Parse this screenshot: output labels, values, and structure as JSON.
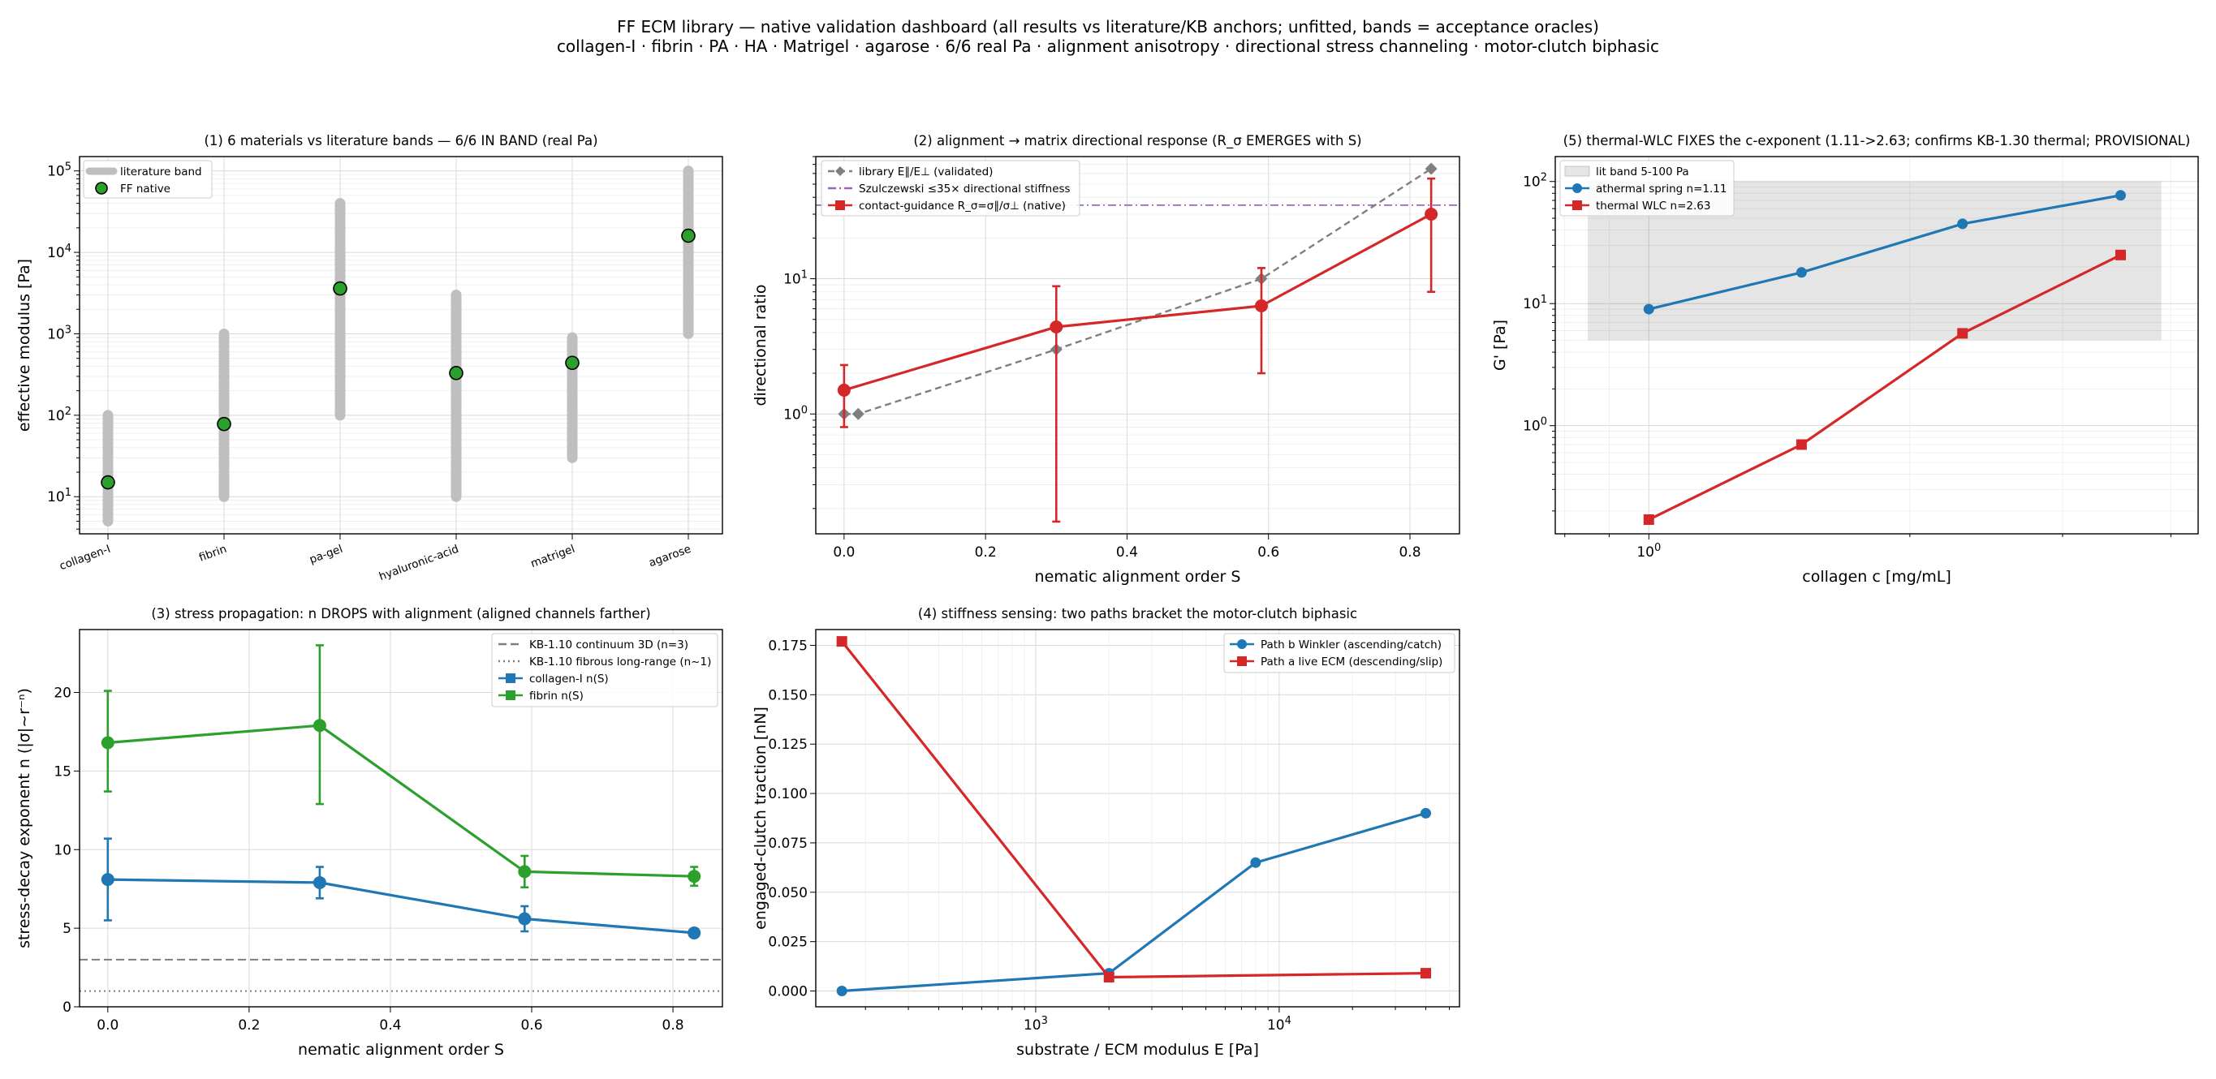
{
  "suptitle": {
    "line1": "FF ECM library — native validation dashboard (all results vs literature/KB anchors; unfitted, bands = acceptance oracles)",
    "line2": "collagen-I · fibrin · PA · HA · Matrigel · agarose  ·  6/6 real Pa · alignment anisotropy · directional stress channeling · motor-clutch biphasic"
  },
  "colors": {
    "band": "#bfbfbf",
    "green": "#2ca02c",
    "red": "#d62728",
    "blue": "#1f77b4",
    "gray": "#7f7f7f",
    "purple": "#9467bd"
  },
  "chart_data": [
    {
      "id": "p1",
      "type": "scatter",
      "title": "(1) 6 materials vs literature bands — 6/6 IN BAND (real Pa)",
      "xlabel": "",
      "ylabel": "effective modulus [Pa]",
      "yscale": "log",
      "ylim": [
        3.5,
        150000
      ],
      "categories": [
        "collagen-I",
        "fibrin",
        "pa-gel",
        "hyaluronic-acid",
        "matrigel",
        "agarose"
      ],
      "bands": [
        [
          5,
          100
        ],
        [
          10,
          1000
        ],
        [
          100,
          40000
        ],
        [
          10,
          3000
        ],
        [
          30,
          900
        ],
        [
          1000,
          100000
        ]
      ],
      "values": [
        15,
        78,
        3600,
        330,
        440,
        16000
      ],
      "legend": [
        "literature band",
        "FF native"
      ],
      "legend_position": "upper-left",
      "grid": true
    },
    {
      "id": "p2",
      "type": "line",
      "title": "(2) alignment → matrix directional response (R_σ EMERGES with S)",
      "xlabel": "nematic alignment order S",
      "ylabel": "directional ratio",
      "yscale": "log",
      "xlim": [
        -0.04,
        0.87
      ],
      "ylim": [
        0.13,
        80
      ],
      "legend_position": "upper-left",
      "grid": true,
      "hline": {
        "name": "Szulczewski ≤35× directional stiffness",
        "y": 35
      },
      "series": [
        {
          "name": "library E∥/E⊥ (validated)",
          "x": [
            0.0,
            0.02,
            0.3,
            0.59,
            0.83
          ],
          "y": [
            1.0,
            1.0,
            3.0,
            10.0,
            65.0
          ]
        },
        {
          "name": "contact-guidance R_σ=σ∥/σ⊥ (native)",
          "x": [
            0.0,
            0.3,
            0.59,
            0.83
          ],
          "y": [
            1.5,
            4.4,
            6.3,
            30.0
          ],
          "err_low": [
            0.8,
            0.16,
            2.0,
            8.0
          ],
          "err_high": [
            2.3,
            8.8,
            12.0,
            55.0
          ]
        }
      ]
    },
    {
      "id": "p5",
      "type": "line",
      "title": "(5) thermal-WLC FIXES the c-exponent (1.11->2.63; confirms KB-1.30 thermal; PROVISIONAL)",
      "xlabel": "collagen c [mg/mL]",
      "ylabel": "G' [Pa]",
      "xscale": "log",
      "yscale": "log",
      "xlim": [
        0.78,
        4.3
      ],
      "ylim": [
        0.13,
        160
      ],
      "legend_position": "upper-left",
      "grid": true,
      "band": {
        "name": "lit band 5-100 Pa",
        "y": [
          5,
          100
        ]
      },
      "series": [
        {
          "name": "athermal spring n=1.11",
          "x": [
            1.0,
            1.5,
            2.3,
            3.5
          ],
          "y": [
            9.0,
            18.0,
            45.0,
            77.0
          ]
        },
        {
          "name": "thermal WLC n=2.63",
          "x": [
            1.0,
            1.5,
            2.3,
            3.5
          ],
          "y": [
            0.17,
            0.7,
            5.7,
            25.0
          ]
        }
      ]
    },
    {
      "id": "p3",
      "type": "line",
      "title": "(3) stress propagation: n DROPS with alignment (aligned channels farther)",
      "xlabel": "nematic alignment order S",
      "ylabel": "stress-decay exponent n  (|σ|~r⁻ⁿ)",
      "xlim": [
        -0.04,
        0.87
      ],
      "ylim": [
        0,
        24
      ],
      "legend_position": "upper-right",
      "grid": true,
      "hlines": [
        {
          "name": "KB-1.10 continuum 3D (n=3)",
          "y": 3
        },
        {
          "name": "KB-1.10 fibrous long-range (n~1)",
          "y": 1
        }
      ],
      "series": [
        {
          "name": "collagen-I n(S)",
          "x": [
            0.0,
            0.3,
            0.59,
            0.83
          ],
          "y": [
            8.1,
            7.9,
            5.6,
            4.7
          ],
          "err_low": [
            5.5,
            6.9,
            4.8,
            4.5
          ],
          "err_high": [
            10.7,
            8.9,
            6.4,
            4.9
          ]
        },
        {
          "name": "fibrin n(S)",
          "x": [
            0.0,
            0.3,
            0.59,
            0.83
          ],
          "y": [
            16.8,
            17.9,
            8.6,
            8.3
          ],
          "err_low": [
            13.7,
            12.9,
            7.6,
            7.7
          ],
          "err_high": [
            20.1,
            23.0,
            9.6,
            8.9
          ]
        }
      ]
    },
    {
      "id": "p4",
      "type": "line",
      "title": "(4) stiffness sensing: two paths bracket the motor-clutch biphasic",
      "xlabel": "substrate / ECM modulus E [Pa]",
      "ylabel": "engaged-clutch traction [nN]",
      "xscale": "log",
      "xlim": [
        125,
        55000
      ],
      "ylim": [
        -0.008,
        0.183
      ],
      "legend_position": "upper-right",
      "grid": true,
      "series": [
        {
          "name": "Path b Winkler (ascending/catch)",
          "x": [
            160,
            2000,
            8000,
            40000
          ],
          "y": [
            0.0,
            0.009,
            0.065,
            0.09
          ]
        },
        {
          "name": "Path a live ECM (descending/slip)",
          "x": [
            160,
            2000,
            40000
          ],
          "y": [
            0.177,
            0.007,
            0.009
          ]
        }
      ]
    }
  ]
}
